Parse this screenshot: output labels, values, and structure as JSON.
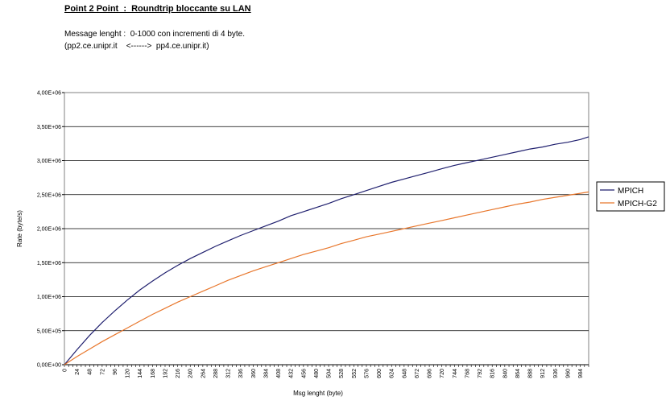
{
  "header": {
    "title": "Point 2 Point  :  Roundtrip bloccante su LAN",
    "line1": "Message lenght :  0-1000 con incrementi di 4 byte.",
    "line2": "(pp2.ce.unipr.it    <------>  pp4.ce.unipr.it)"
  },
  "chart_data": {
    "type": "line",
    "xlabel": "Msg lenght (byte)",
    "ylabel": "Rate (byte/s)",
    "xlim": [
      0,
      1000
    ],
    "ylim": [
      0,
      4000000
    ],
    "grid": true,
    "legend_position": "right",
    "x_ticks": [
      "0",
      "24",
      "48",
      "72",
      "96",
      "120",
      "144",
      "168",
      "192",
      "216",
      "240",
      "264",
      "288",
      "312",
      "336",
      "360",
      "384",
      "408",
      "432",
      "456",
      "480",
      "504",
      "528",
      "552",
      "576",
      "600",
      "624",
      "648",
      "672",
      "696",
      "720",
      "744",
      "768",
      "792",
      "816",
      "840",
      "864",
      "888",
      "912",
      "936",
      "960",
      "984"
    ],
    "y_ticks": [
      "0,00E+00",
      "5,00E+05",
      "1,00E+06",
      "1,50E+06",
      "2,00E+06",
      "2,50E+06",
      "3,00E+06",
      "3,50E+06",
      "4,00E+06"
    ],
    "series": [
      {
        "name": "MPICH",
        "color": "#1f1f6e",
        "x": [
          0,
          24,
          48,
          72,
          96,
          120,
          144,
          168,
          192,
          216,
          240,
          264,
          288,
          312,
          336,
          360,
          384,
          408,
          432,
          456,
          480,
          504,
          528,
          552,
          576,
          600,
          624,
          648,
          672,
          696,
          720,
          744,
          768,
          792,
          816,
          840,
          864,
          888,
          912,
          936,
          960,
          984,
          1000
        ],
        "y": [
          0,
          220000,
          430000,
          620000,
          790000,
          950000,
          1100000,
          1230000,
          1350000,
          1460000,
          1560000,
          1650000,
          1740000,
          1820000,
          1900000,
          1970000,
          2040000,
          2110000,
          2190000,
          2250000,
          2310000,
          2370000,
          2440000,
          2500000,
          2560000,
          2620000,
          2680000,
          2730000,
          2780000,
          2830000,
          2880000,
          2930000,
          2970000,
          3010000,
          3050000,
          3090000,
          3130000,
          3170000,
          3200000,
          3240000,
          3270000,
          3310000,
          3350000
        ]
      },
      {
        "name": "MPICH-G2",
        "color": "#e8762b",
        "x": [
          0,
          24,
          48,
          72,
          96,
          120,
          144,
          168,
          192,
          216,
          240,
          264,
          288,
          312,
          336,
          360,
          384,
          408,
          432,
          456,
          480,
          504,
          528,
          552,
          576,
          600,
          624,
          648,
          672,
          696,
          720,
          744,
          768,
          792,
          816,
          840,
          864,
          888,
          912,
          936,
          960,
          984,
          1000
        ],
        "y": [
          0,
          120000,
          230000,
          340000,
          440000,
          540000,
          640000,
          740000,
          830000,
          920000,
          1000000,
          1080000,
          1160000,
          1240000,
          1310000,
          1380000,
          1440000,
          1500000,
          1560000,
          1620000,
          1670000,
          1720000,
          1780000,
          1830000,
          1880000,
          1920000,
          1960000,
          2000000,
          2040000,
          2080000,
          2120000,
          2160000,
          2200000,
          2240000,
          2280000,
          2320000,
          2360000,
          2390000,
          2430000,
          2460000,
          2490000,
          2520000,
          2540000
        ]
      }
    ]
  }
}
